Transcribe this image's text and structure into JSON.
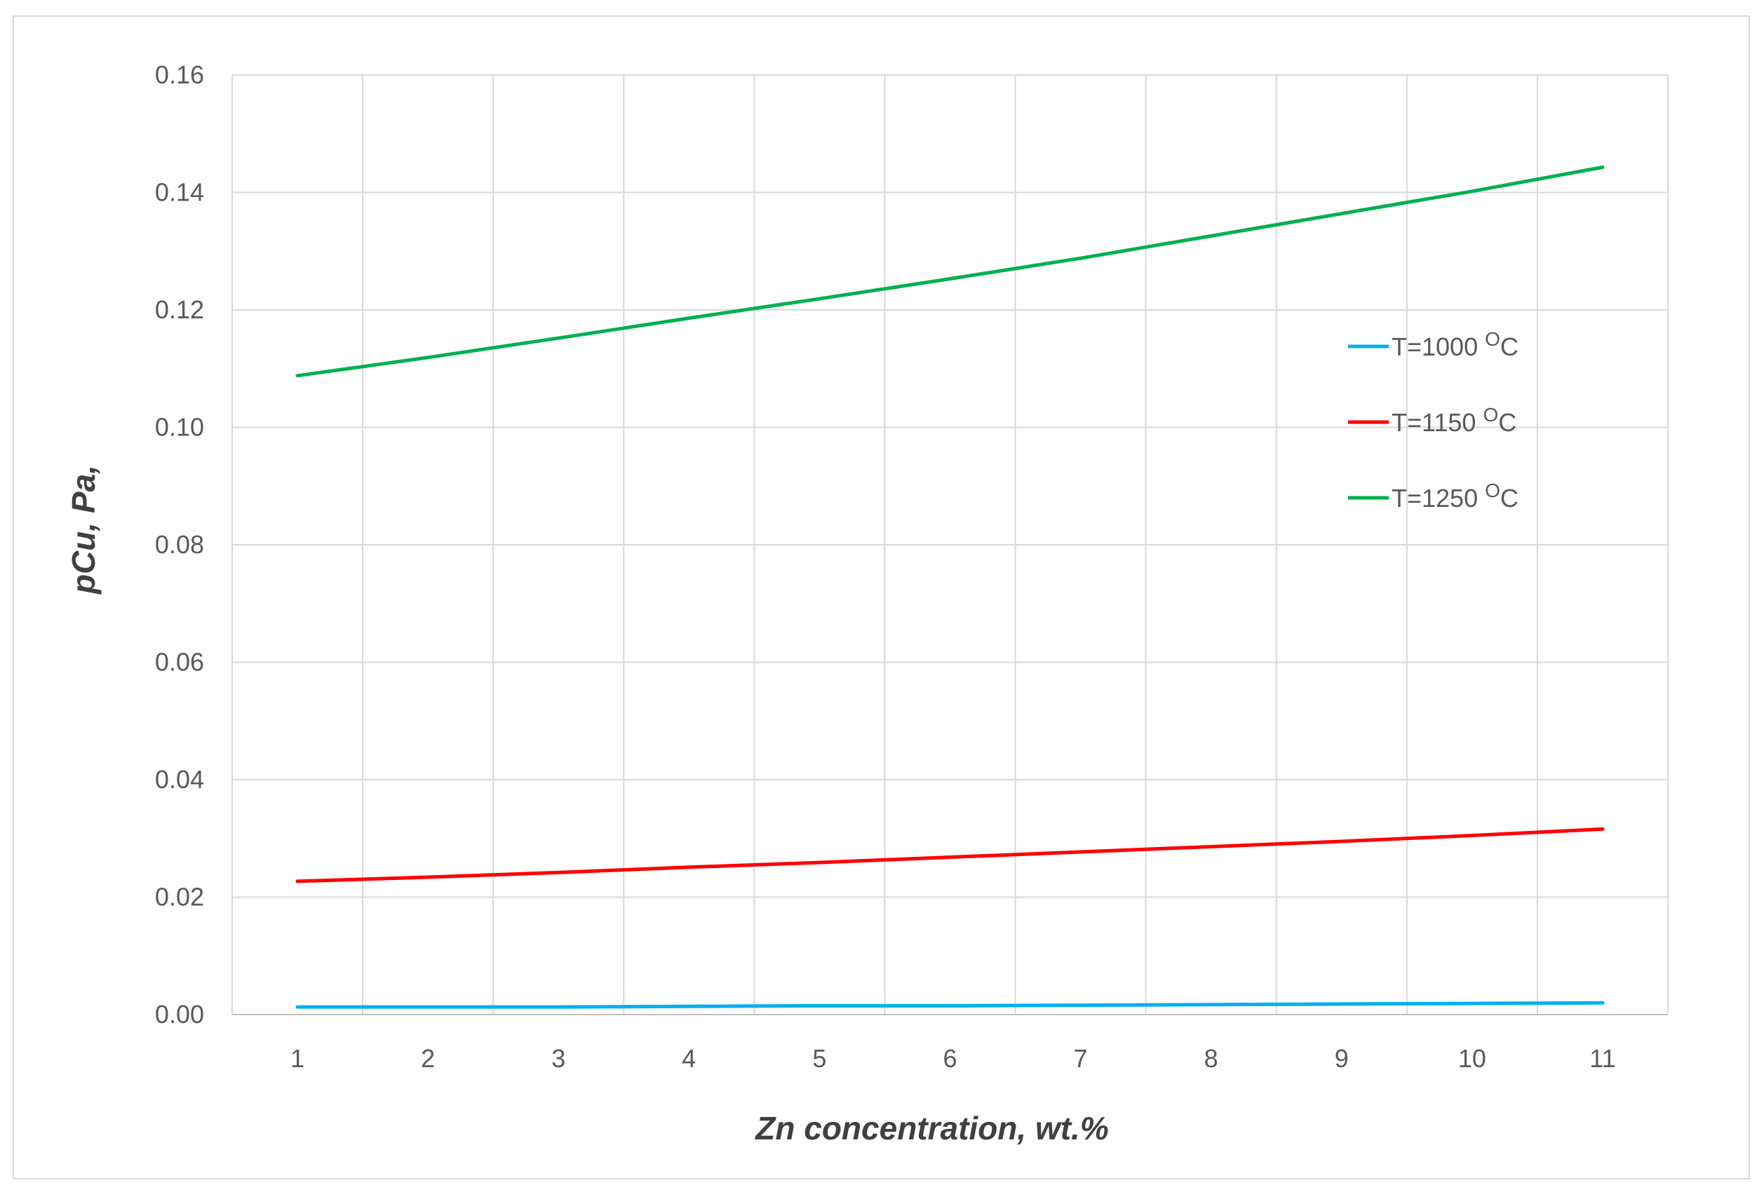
{
  "chart_data": {
    "type": "line",
    "x": [
      1,
      2,
      3,
      4,
      5,
      6,
      7,
      8,
      9,
      10,
      11
    ],
    "xlabel": "Zn concentration, wt.%",
    "ylabel": "pCu, Pa,",
    "xlim": [
      0.5,
      11.5
    ],
    "ylim": [
      0,
      0.16
    ],
    "x_ticks": [
      "1",
      "2",
      "3",
      "4",
      "5",
      "6",
      "7",
      "8",
      "9",
      "10",
      "11"
    ],
    "y_ticks": [
      "0.00",
      "0.02",
      "0.04",
      "0.06",
      "0.08",
      "0.10",
      "0.12",
      "0.14",
      "0.16"
    ],
    "grid": true,
    "legend_position": "right",
    "series": [
      {
        "name": "T=1000 ",
        "unit_sup": "O",
        "unit": "C",
        "color": "#00b0f0",
        "values": [
          0.0013,
          0.0013,
          0.0013,
          0.0014,
          0.0015,
          0.0015,
          0.0016,
          0.0017,
          0.0018,
          0.0019,
          0.002
        ]
      },
      {
        "name": "T=1150 ",
        "unit_sup": "O",
        "unit": "C",
        "color": "#ff0000",
        "values": [
          0.0227,
          0.0234,
          0.0242,
          0.0251,
          0.0259,
          0.0268,
          0.0277,
          0.0286,
          0.0295,
          0.0305,
          0.0316
        ]
      },
      {
        "name": "T=1250 ",
        "unit_sup": "O",
        "unit": "C",
        "color": "#00b050",
        "values": [
          0.1088,
          0.1119,
          0.1152,
          0.1186,
          0.1219,
          0.1253,
          0.1288,
          0.1326,
          0.1364,
          0.1402,
          0.1443
        ]
      }
    ]
  }
}
